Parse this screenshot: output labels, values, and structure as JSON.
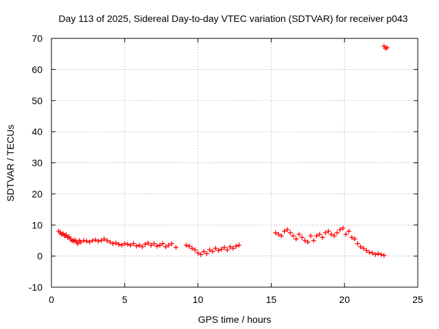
{
  "chart_data": {
    "type": "scatter",
    "title": "Day 113 of 2025, Sidereal Day-to-day VTEC variation (SDTVAR) for receiver p043",
    "xlabel": "GPS time / hours",
    "ylabel": "SDTVAR / TECUs",
    "xlim": [
      0,
      25
    ],
    "ylim": [
      -10,
      70
    ],
    "xticks": [
      "0",
      "5",
      "10",
      "15",
      "20",
      "25"
    ],
    "yticks": [
      "-10",
      "0",
      "10",
      "20",
      "30",
      "40",
      "50",
      "60",
      "70"
    ],
    "grid": true,
    "marker": "plus",
    "color": "#ff0000",
    "series": [
      {
        "name": "SDTVAR",
        "x": [
          0.5,
          0.6,
          0.7,
          0.8,
          0.9,
          1.0,
          1.1,
          1.2,
          1.3,
          1.4,
          1.5,
          1.6,
          1.7,
          1.8,
          1.9,
          2.0,
          2.2,
          2.4,
          2.6,
          2.8,
          3.0,
          3.2,
          3.4,
          3.6,
          3.8,
          4.0,
          4.2,
          4.4,
          4.6,
          4.8,
          5.0,
          5.2,
          5.4,
          5.6,
          5.8,
          6.0,
          6.2,
          6.4,
          6.6,
          6.8,
          7.0,
          7.2,
          7.4,
          7.6,
          7.8,
          8.0,
          8.2,
          8.5,
          9.2,
          9.4,
          9.6,
          9.8,
          10.0,
          10.2,
          10.4,
          10.6,
          10.8,
          11.0,
          11.2,
          11.4,
          11.6,
          11.8,
          12.0,
          12.2,
          12.4,
          12.6,
          12.8,
          15.3,
          15.5,
          15.7,
          15.9,
          16.1,
          16.3,
          16.5,
          16.7,
          16.9,
          17.1,
          17.3,
          17.5,
          17.7,
          17.9,
          18.1,
          18.3,
          18.5,
          18.7,
          18.9,
          19.1,
          19.3,
          19.5,
          19.7,
          19.9,
          20.1,
          20.3,
          20.5,
          20.7,
          20.9,
          21.1,
          21.3,
          21.5,
          21.7,
          21.9,
          22.1,
          22.3,
          22.5,
          22.7,
          22.9,
          22.7,
          22.8
        ],
        "y": [
          8,
          7.5,
          7,
          7.2,
          6.5,
          6.8,
          6,
          6.2,
          5.5,
          5,
          4.8,
          5.2,
          4.5,
          4,
          5,
          4.5,
          5,
          4.8,
          4.5,
          5,
          5.2,
          4.8,
          5,
          5.5,
          5,
          4.5,
          4,
          4.2,
          3.8,
          3.5,
          4,
          3.8,
          3.5,
          4,
          3.2,
          3.5,
          3,
          3.8,
          4.2,
          3.5,
          4,
          3.2,
          3.5,
          4,
          3,
          3.5,
          4,
          2.8,
          3.5,
          3.2,
          2.5,
          2,
          1,
          0.5,
          1.5,
          0.8,
          2,
          1.5,
          2.5,
          1.8,
          2.2,
          2.8,
          2,
          3,
          2.5,
          3.2,
          3.5,
          7.5,
          7,
          6.5,
          8,
          8.5,
          7.5,
          6.5,
          5.5,
          7,
          6,
          5,
          4.5,
          6.5,
          5,
          6.5,
          7,
          6,
          7.5,
          8,
          7,
          6.5,
          7.5,
          8.5,
          9,
          7,
          8,
          6,
          5.5,
          4,
          3,
          2.5,
          1.8,
          1.2,
          1,
          0.5,
          0.8,
          0.5,
          0.2,
          67,
          67.5,
          66.8
        ]
      }
    ]
  }
}
